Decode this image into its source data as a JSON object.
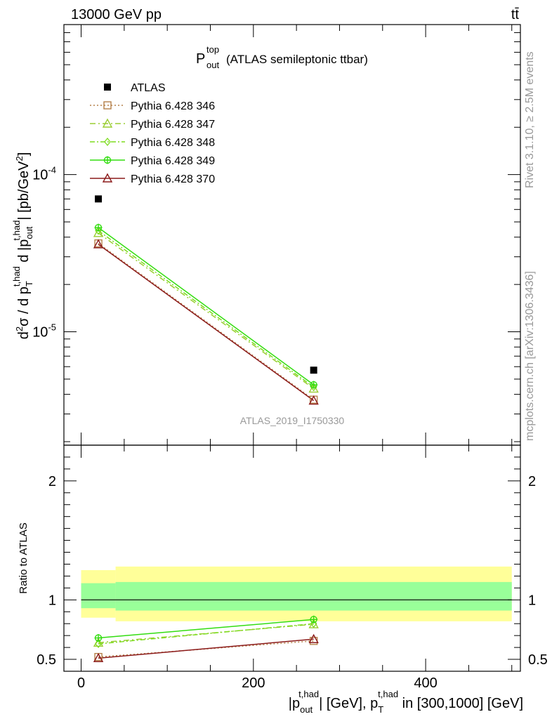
{
  "header": {
    "left": "13000 GeV pp",
    "right": "tt̄"
  },
  "side_labels": {
    "rivet": "Rivet 3.1.10, ≥ 2.5M events",
    "mcplots": "mcplots.cern.ch [arXiv:1306.3436]"
  },
  "chart_data": [
    {
      "type": "scatter",
      "title": "P_out^top (ATLAS semileptonic ttbar)",
      "title_main": "P",
      "title_sup": "top",
      "title_sub": "out",
      "title_rest": "(ATLAS semileptonic ttbar)",
      "ylabel": "d²σ / d p_T^{t,had} d |p_out^{t,had}| [pb/GeV²]",
      "yscale": "log",
      "ylim": [
        1.9e-06,
        0.0009
      ],
      "xlim": [
        -20,
        510
      ],
      "yticks": [
        {
          "value": 0.0001,
          "label": "10",
          "exp": "-4"
        },
        {
          "value": 1e-05,
          "label": "10",
          "exp": "-5"
        }
      ],
      "watermark": "ATLAS_2019_I1750330",
      "legend_position": "top-left",
      "series": [
        {
          "name": "ATLAS",
          "color": "#000000",
          "marker": "square",
          "dash": "",
          "x": [
            20,
            270
          ],
          "y": [
            7e-05,
            5.7e-06
          ]
        },
        {
          "name": "Pythia 6.428 346",
          "color": "#b5814a",
          "marker": "square-open",
          "dash": "2,3",
          "x": [
            20,
            270
          ],
          "y": [
            3.65e-05,
            3.7e-06
          ]
        },
        {
          "name": "Pythia 6.428 347",
          "color": "#9acd32",
          "marker": "triangle-open",
          "dash": "8,4,2,4",
          "x": [
            20,
            270
          ],
          "y": [
            4.25e-05,
            4.35e-06
          ]
        },
        {
          "name": "Pythia 6.428 348",
          "color": "#7ddc1f",
          "marker": "diamond-open",
          "dash": "7,3,2,3",
          "x": [
            20,
            270
          ],
          "y": [
            4.4e-05,
            4.45e-06
          ]
        },
        {
          "name": "Pythia 6.428 349",
          "color": "#33dd11",
          "marker": "cross-circle",
          "dash": "",
          "x": [
            20,
            270
          ],
          "y": [
            4.6e-05,
            4.6e-06
          ]
        },
        {
          "name": "Pythia 6.428 370",
          "color": "#8b1a1a",
          "marker": "triangle-open",
          "dash": "",
          "x": [
            20,
            270
          ],
          "y": [
            3.6e-05,
            3.65e-06
          ]
        }
      ]
    },
    {
      "type": "line",
      "ylabel": "Ratio to ATLAS",
      "xlabel": "|p_out^{t,had}| [GeV], p_T^{t,had} in [300,1000] [GeV]",
      "xlim": [
        -20,
        510
      ],
      "ylim": [
        0.4,
        2.3
      ],
      "xticks": [
        0,
        200,
        400
      ],
      "yticks": [
        0.5,
        1,
        2
      ],
      "bands": [
        {
          "name": "total uncertainty",
          "color": "#ffff99",
          "bins": [
            [
              0,
              40,
              0.85,
              1.25
            ],
            [
              40,
              500,
              0.82,
              1.28
            ]
          ]
        },
        {
          "name": "stat uncertainty",
          "color": "#99ff99",
          "bins": [
            [
              0,
              40,
              0.93,
              1.14
            ],
            [
              40,
              500,
              0.91,
              1.15
            ]
          ]
        }
      ],
      "series": [
        {
          "name": "Pythia 6.428 346",
          "x": [
            20,
            270
          ],
          "y": [
            0.52,
            0.655
          ]
        },
        {
          "name": "Pythia 6.428 347",
          "x": [
            20,
            270
          ],
          "y": [
            0.64,
            0.795
          ]
        },
        {
          "name": "Pythia 6.428 348",
          "x": [
            20,
            270
          ],
          "y": [
            0.63,
            0.8
          ]
        },
        {
          "name": "Pythia 6.428 349",
          "x": [
            20,
            270
          ],
          "y": [
            0.68,
            0.835
          ]
        },
        {
          "name": "Pythia 6.428 370",
          "x": [
            20,
            270
          ],
          "y": [
            0.51,
            0.67
          ]
        }
      ]
    }
  ]
}
